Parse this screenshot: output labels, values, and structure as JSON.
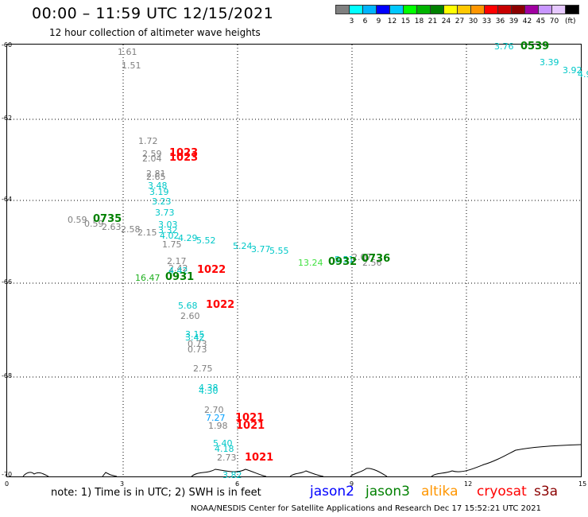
{
  "header": {
    "title": "00:00 – 11:59 UTC 12/15/2021",
    "subtitle": "12 hour collection of altimeter wave heights"
  },
  "legend": {
    "colors": [
      "#808080",
      "#00ffff",
      "#00b4ff",
      "#0000ff",
      "#00c8ff",
      "#00ff00",
      "#00b400",
      "#008000",
      "#ffff00",
      "#ffc800",
      "#ff9600",
      "#ff0000",
      "#c80000",
      "#8b0000",
      "#a000a0",
      "#c896ff",
      "#e6c8ff",
      "#000000"
    ],
    "labels": [
      "3",
      "6",
      "9",
      "12",
      "15",
      "18",
      "21",
      "24",
      "27",
      "30",
      "33",
      "36",
      "39",
      "42",
      "45",
      "70"
    ],
    "unit": "(ft)"
  },
  "axes": {
    "lat_labels": [
      "-60",
      "-62",
      "-64",
      "-66",
      "-68",
      "-70"
    ],
    "lon_labels": [
      "0",
      "3",
      "6",
      "9",
      "12",
      "15"
    ]
  },
  "points": [
    {
      "t": "1.61",
      "c": "#808080"
    },
    {
      "t": "1.51",
      "c": "#808080"
    },
    {
      "t": "1.72",
      "c": "#808080"
    },
    {
      "t": "2.59",
      "c": "#808080"
    },
    {
      "t": "2.04",
      "c": "#808080"
    },
    {
      "t": "2.81",
      "c": "#808080"
    },
    {
      "t": "2.65",
      "c": "#808080"
    },
    {
      "t": "3.48",
      "c": "#00c8c8"
    },
    {
      "t": "3.19",
      "c": "#00c8c8"
    },
    {
      "t": "3.23",
      "c": "#00c8c8"
    },
    {
      "t": "3.73",
      "c": "#00c8c8"
    },
    {
      "t": "0.59",
      "c": "#808080"
    },
    {
      "t": "0.59",
      "c": "#808080"
    },
    {
      "t": "2.63",
      "c": "#808080"
    },
    {
      "t": "2.58",
      "c": "#808080"
    },
    {
      "t": "2.15",
      "c": "#808080"
    },
    {
      "t": "3.03",
      "c": "#00c8c8"
    },
    {
      "t": "3.32",
      "c": "#00c8c8"
    },
    {
      "t": "4.02",
      "c": "#00c8c8"
    },
    {
      "t": "4.29",
      "c": "#00c8c8"
    },
    {
      "t": "5.52",
      "c": "#00c8c8"
    },
    {
      "t": "1.75",
      "c": "#808080"
    },
    {
      "t": "5.24",
      "c": "#00c8c8"
    },
    {
      "t": "3.77",
      "c": "#00c8c8"
    },
    {
      "t": "5.55",
      "c": "#00c8c8"
    },
    {
      "t": "2.17",
      "c": "#808080"
    },
    {
      "t": "2.42",
      "c": "#808080"
    },
    {
      "t": "4.42",
      "c": "#00c8c8"
    },
    {
      "t": "13.24",
      "c": "#40e040"
    },
    {
      "t": "5.51",
      "c": "#00c8c8"
    },
    {
      "t": "2.07",
      "c": "#808080"
    },
    {
      "t": "2.56",
      "c": "#808080"
    },
    {
      "t": "16.47",
      "c": "#20b020"
    },
    {
      "t": "5.68",
      "c": "#00c8c8"
    },
    {
      "t": "2.60",
      "c": "#808080"
    },
    {
      "t": "3.15",
      "c": "#00c8c8"
    },
    {
      "t": "3.42",
      "c": "#00c8c8"
    },
    {
      "t": "0.73",
      "c": "#808080"
    },
    {
      "t": "0.73",
      "c": "#808080"
    },
    {
      "t": "2.75",
      "c": "#808080"
    },
    {
      "t": "4.38",
      "c": "#00c8c8"
    },
    {
      "t": "4.30",
      "c": "#00c8c8"
    },
    {
      "t": "2.70",
      "c": "#808080"
    },
    {
      "t": "7.27",
      "c": "#00a0ff"
    },
    {
      "t": "1.98",
      "c": "#808080"
    },
    {
      "t": "5.40",
      "c": "#00c8c8"
    },
    {
      "t": "4.18",
      "c": "#00c8c8"
    },
    {
      "t": "2.73",
      "c": "#808080"
    },
    {
      "t": "3.82",
      "c": "#00c8c8"
    },
    {
      "t": "3.76",
      "c": "#00c8c8"
    },
    {
      "t": "3.39",
      "c": "#00c8c8"
    },
    {
      "t": "3.92",
      "c": "#00c8c8"
    },
    {
      "t": "4.9",
      "c": "#00c8c8"
    }
  ],
  "passes": [
    {
      "t": "1023",
      "c": "#ff0000"
    },
    {
      "t": "1023",
      "c": "#ff0000"
    },
    {
      "t": "0735",
      "c": "#008000"
    },
    {
      "t": "1022",
      "c": "#ff0000"
    },
    {
      "t": "0931",
      "c": "#008000"
    },
    {
      "t": "0932",
      "c": "#008000"
    },
    {
      "t": "0736",
      "c": "#008000"
    },
    {
      "t": "1022",
      "c": "#ff0000"
    },
    {
      "t": "1021",
      "c": "#ff0000"
    },
    {
      "t": "1021",
      "c": "#ff0000"
    },
    {
      "t": "1021",
      "c": "#ff0000"
    },
    {
      "t": "0539",
      "c": "#008000"
    }
  ],
  "footer_note": "note:  1) Time is in UTC; 2) SWH is in feet",
  "satellites": [
    {
      "name": "jason2",
      "color": "#0000ff"
    },
    {
      "name": "jason3",
      "color": "#008000"
    },
    {
      "name": "altika",
      "color": "#ff9600"
    },
    {
      "name": "cryosat",
      "color": "#ff0000"
    },
    {
      "name": "s3a",
      "color": "#8b0000"
    }
  ],
  "credit": "NOAA/NESDIS Center for Satellite Applications and Research     Dec 17 15:52:21 UTC 2021"
}
